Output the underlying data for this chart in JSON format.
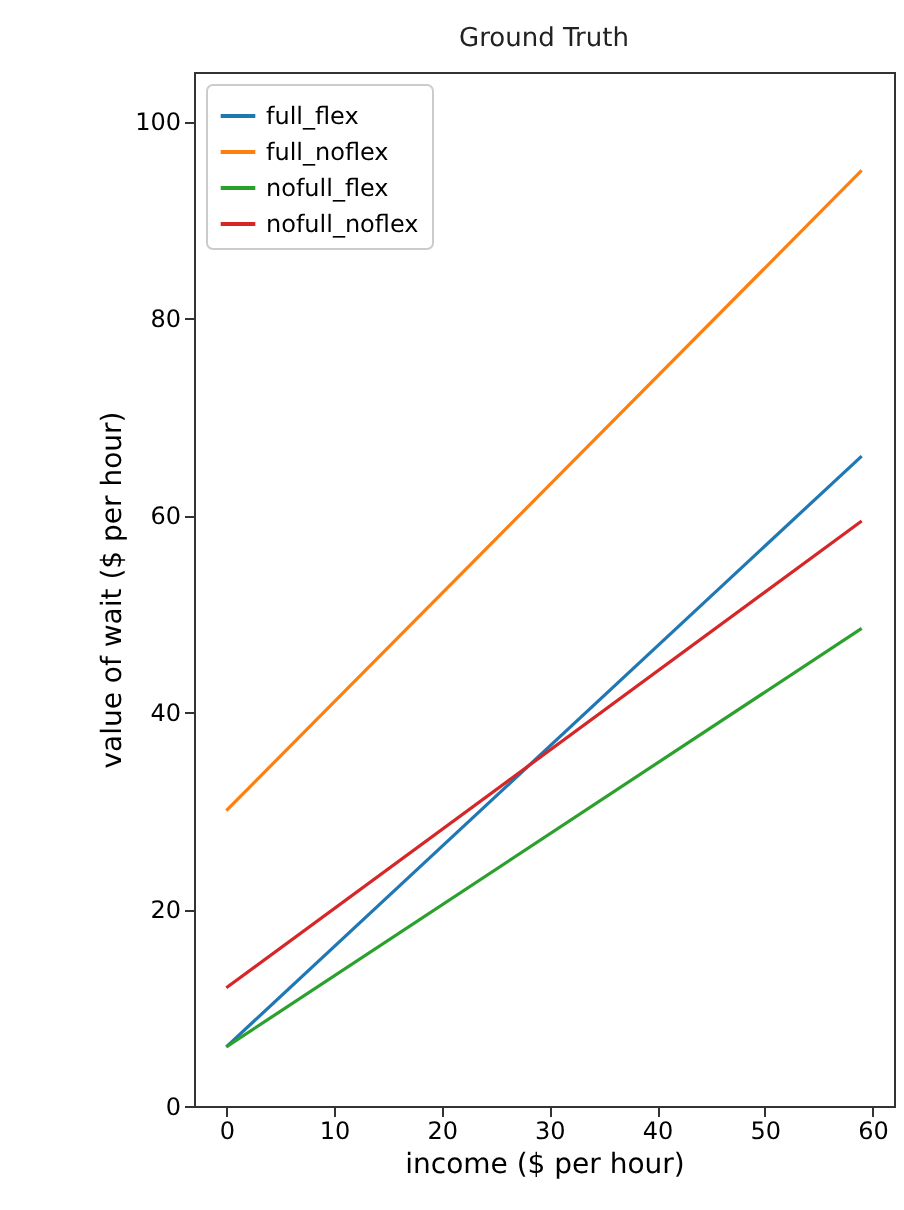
{
  "chart_data": {
    "type": "line",
    "title": "Ground Truth",
    "xlabel": "income ($ per hour)",
    "ylabel": "value of wait ($ per hour)",
    "x": [
      0,
      59
    ],
    "series": [
      {
        "name": "full_flex",
        "color": "#1f77b4",
        "values": [
          6,
          66
        ]
      },
      {
        "name": "full_noflex",
        "color": "#ff7f0e",
        "values": [
          30,
          95
        ]
      },
      {
        "name": "nofull_flex",
        "color": "#2ca02c",
        "values": [
          6,
          48.5
        ]
      },
      {
        "name": "nofull_noflex",
        "color": "#d62728",
        "values": [
          12,
          59.4
        ]
      }
    ],
    "xlim": [
      -3,
      62
    ],
    "ylim": [
      0,
      105
    ],
    "xticks": [
      0,
      10,
      20,
      30,
      40,
      50,
      60
    ],
    "yticks": [
      0,
      20,
      40,
      60,
      80,
      100
    ],
    "legend": "top left",
    "grid": false,
    "line_style": "solid",
    "marker": "none"
  }
}
